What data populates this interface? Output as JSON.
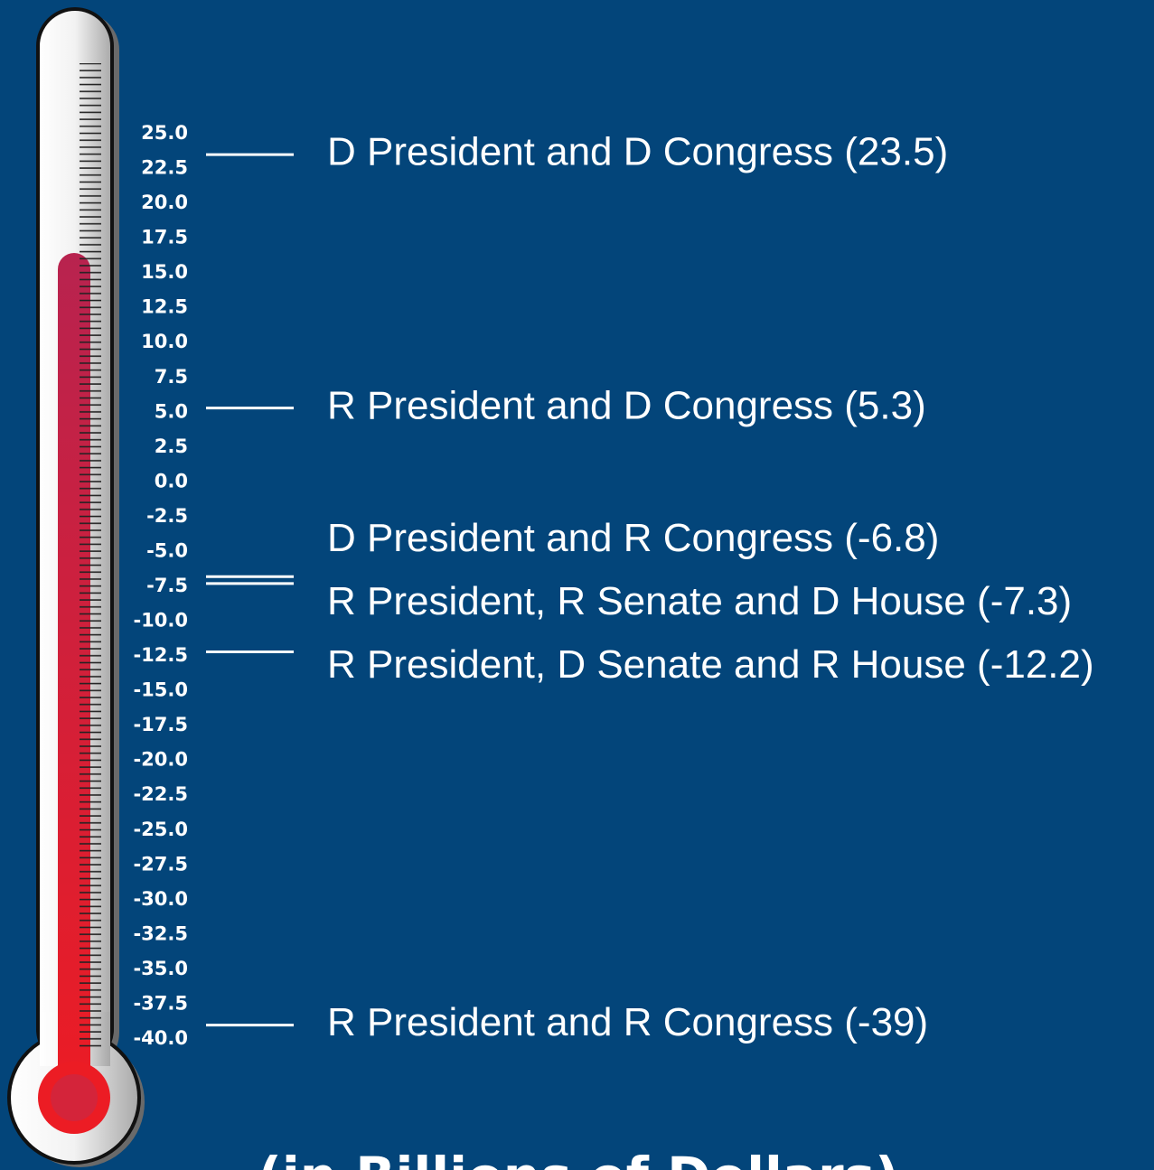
{
  "chart_data": {
    "type": "thermometer",
    "subtitle": "(in Billions of Dollars)",
    "categories": [
      "D President and D Congress (23.5)",
      "R President and D Congress (5.3)",
      "D President and R Congress (-6.8)",
      "R President, R Senate and D House (-7.3)",
      "R President, D Senate and R House (-12.2)",
      "R President and R Congress (-39)"
    ],
    "values": [
      23.5,
      5.3,
      -6.8,
      -7.3,
      -12.2,
      -39
    ],
    "color": "#ffffff",
    "ylim": [
      -40,
      25
    ],
    "yticks": [
      {
        "value": 25,
        "label": "25.0"
      },
      22.5,
      {
        "value": 20,
        "label": "20.0"
      },
      17.5,
      {
        "value": 15,
        "label": "15.0"
      },
      12.5,
      {
        "value": 10,
        "label": "10.0"
      },
      7.5,
      {
        "value": 5,
        "label": "5.0"
      },
      2.5,
      {
        "value": 0,
        "label": "0.0"
      },
      -2.5,
      {
        "value": -5,
        "label": "-5.0"
      },
      -7.5,
      {
        "value": -10,
        "label": "-10.0"
      },
      -12.5,
      {
        "value": -15,
        "label": "-15.0"
      },
      -17.5,
      {
        "value": -20,
        "label": "-20.0"
      },
      -22.5,
      {
        "value": -25,
        "label": "-25.0"
      },
      -27.5,
      {
        "value": -30,
        "label": "-30.0"
      },
      -32.5,
      {
        "value": -35,
        "label": "-35.0"
      },
      -37.5,
      {
        "value": -40,
        "label": "-40.0"
      }
    ]
  }
}
